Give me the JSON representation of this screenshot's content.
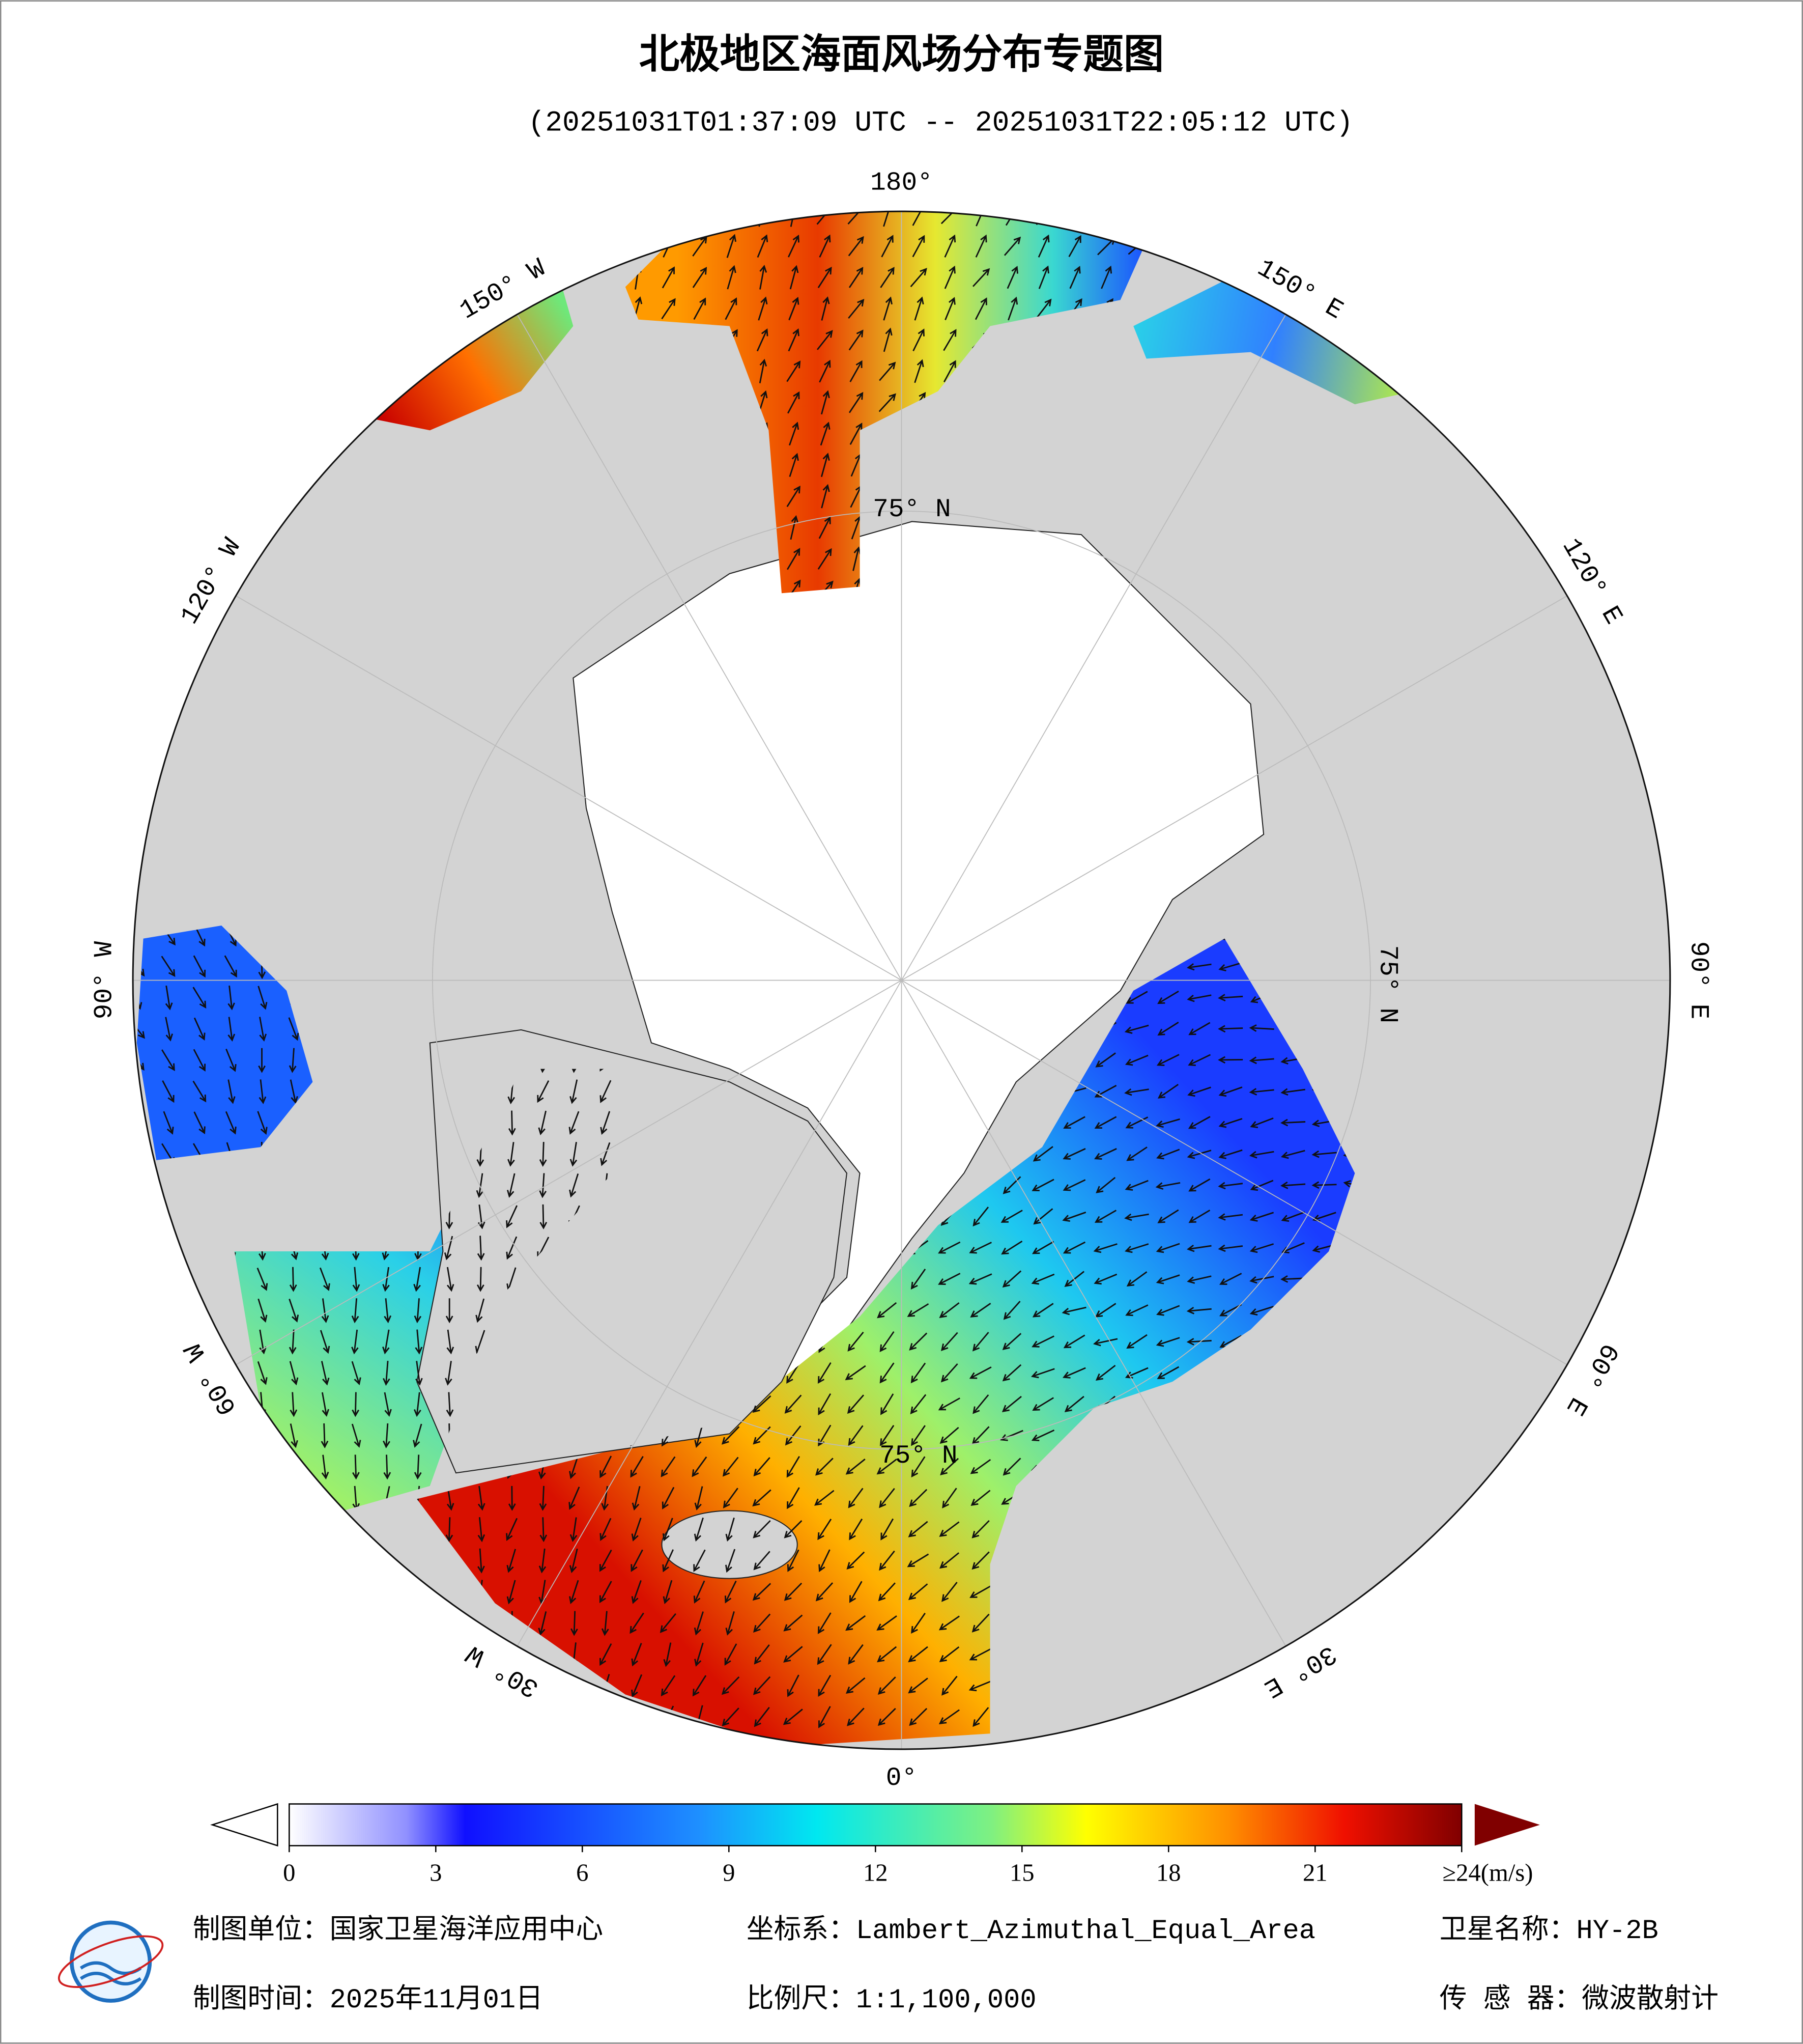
{
  "header": {
    "title": "北极地区海面风场分布专题图",
    "subtitle": "(20251031T01:37:09 UTC -- 20251031T22:05:12 UTC)"
  },
  "map": {
    "lon_labels": [
      "180°",
      "150° E",
      "120° E",
      "90° E",
      "60° E",
      "30° E",
      "0°",
      "30° W",
      "60° W",
      "90° W",
      "120° W",
      "150° W"
    ],
    "lat_labels": [
      "75° N",
      "75° N",
      "75° N"
    ]
  },
  "colorbar": {
    "lim": [
      0,
      24
    ],
    "ticks": [
      0,
      3,
      6,
      9,
      12,
      15,
      18,
      21,
      {
        "value": 24,
        "label": "≥24(m/s)"
      }
    ]
  },
  "footer": {
    "unit": "制图单位：国家卫星海洋应用中心",
    "crs": "坐标系：Lambert_Azimuthal_Equal_Area",
    "satellite": "卫星名称：HY-2B",
    "date": "制图时间：2025年11月01日",
    "scale": "比例尺：1:1,100,000",
    "sensor": "传 感 器：微波散射计"
  }
}
